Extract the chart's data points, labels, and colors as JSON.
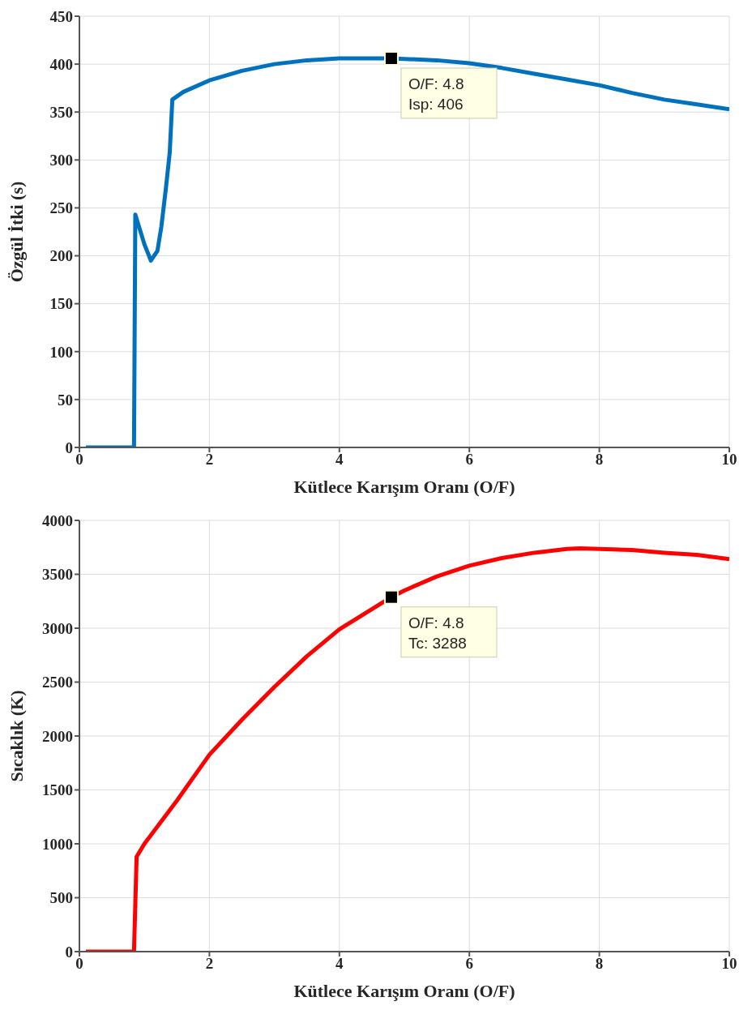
{
  "chart_data": [
    {
      "type": "line",
      "xlabel": "Kütlece Karışım Oranı (O/F)",
      "ylabel": "Özgül İtki (s)",
      "xlim": [
        0,
        10
      ],
      "xticks": [
        0,
        2,
        4,
        6,
        8,
        10
      ],
      "ylim": [
        0,
        450
      ],
      "yticks": [
        0,
        50,
        100,
        150,
        200,
        250,
        300,
        350,
        400,
        450
      ],
      "grid": true,
      "series": [
        {
          "color": "#0072bd",
          "x": [
            0.1,
            0.84,
            0.86,
            1.0,
            1.1,
            1.2,
            1.26,
            1.33,
            1.39,
            1.43,
            1.6,
            2,
            2.5,
            3,
            3.5,
            4,
            4.8,
            5.5,
            6,
            6.5,
            7,
            7.5,
            8,
            8.5,
            9,
            9.5,
            10
          ],
          "values": [
            0,
            0,
            243,
            212,
            195,
            205,
            230,
            270,
            308,
            363,
            371,
            383,
            393,
            400,
            404,
            406,
            406,
            404,
            401,
            396,
            390,
            384,
            378,
            370,
            363,
            358,
            353
          ]
        }
      ],
      "annotations": [
        {
          "text": "O/F: 4.8\nIsp: 406",
          "x": 4.8,
          "y": 406
        }
      ]
    },
    {
      "type": "line",
      "xlabel": "Kütlece Karışım Oranı (O/F)",
      "ylabel": "Sıcaklık (K)",
      "xlim": [
        0,
        10
      ],
      "xticks": [
        0,
        2,
        4,
        6,
        8,
        10
      ],
      "ylim": [
        0,
        4000
      ],
      "yticks": [
        0,
        500,
        1000,
        1500,
        2000,
        2500,
        3000,
        3500,
        4000
      ],
      "grid": true,
      "series": [
        {
          "color": "#ff0000",
          "x": [
            0.1,
            0.84,
            0.88,
            1.0,
            1.5,
            2,
            2.5,
            3,
            3.5,
            4,
            4.8,
            5,
            5.5,
            6,
            6.5,
            7,
            7.5,
            7.7,
            8,
            8.5,
            9,
            9.5,
            10
          ],
          "values": [
            0,
            0,
            880,
            1000,
            1400,
            1826,
            2150,
            2455,
            2740,
            2990,
            3288,
            3350,
            3480,
            3580,
            3650,
            3700,
            3735,
            3740,
            3735,
            3725,
            3700,
            3680,
            3640
          ]
        }
      ],
      "annotations": [
        {
          "text": "O/F: 4.8\nTc: 3288",
          "x": 4.8,
          "y": 3288
        }
      ]
    }
  ]
}
